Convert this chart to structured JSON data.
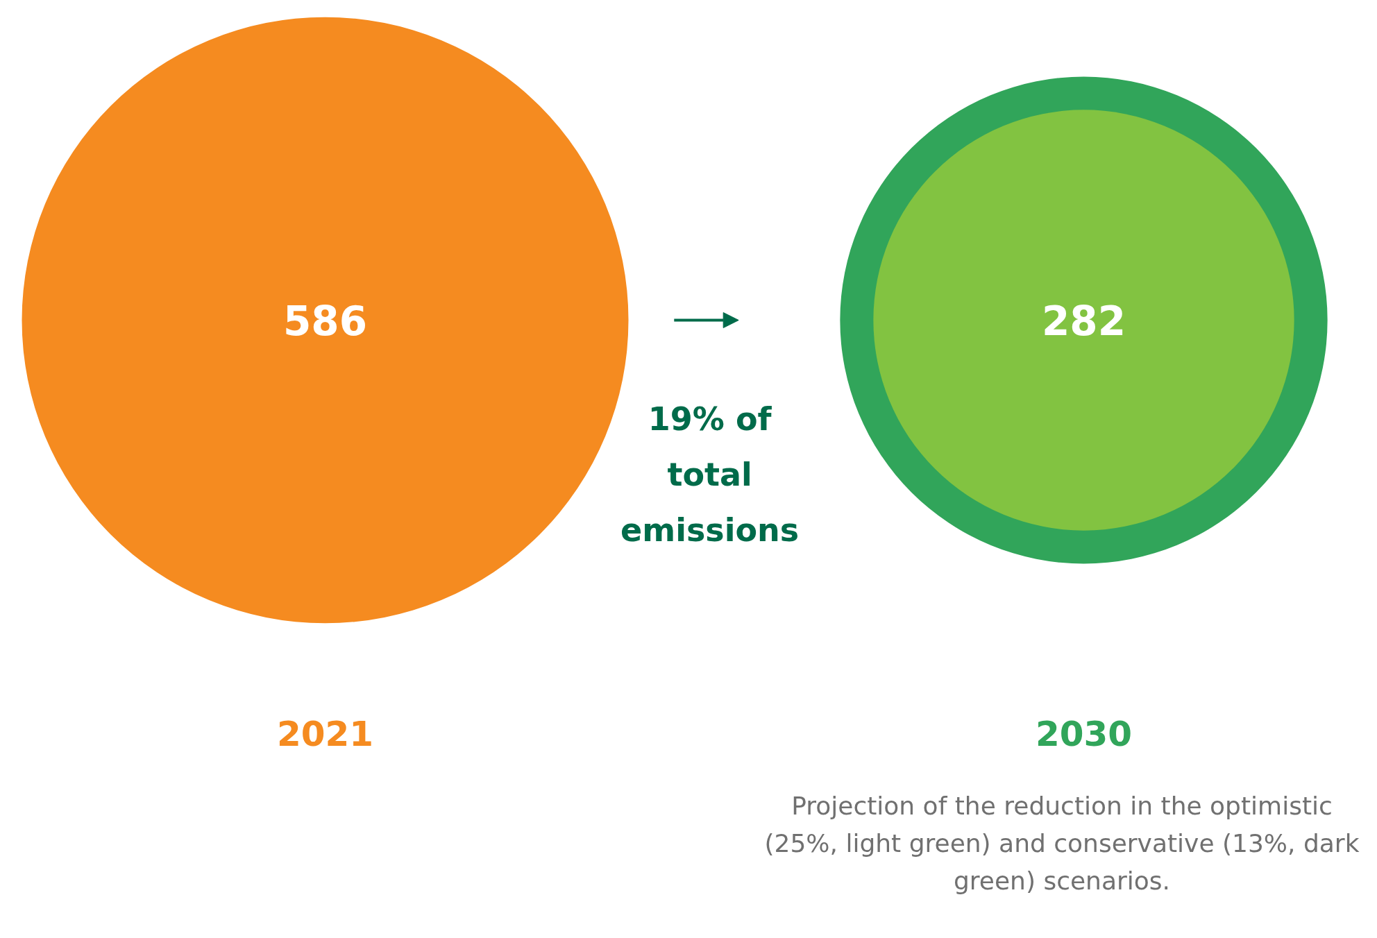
{
  "chart_data": {
    "type": "other",
    "categories": [
      "2021",
      "2030"
    ],
    "values": [
      586,
      282
    ],
    "colors": [
      "#f58b20",
      "#82c341"
    ],
    "data_labels": true,
    "annotations": [
      "19% of total emissions",
      "Projection of the reduction in the optimistic (25%, light green) and conservative (13%, dark green) scenarios."
    ]
  }
}
